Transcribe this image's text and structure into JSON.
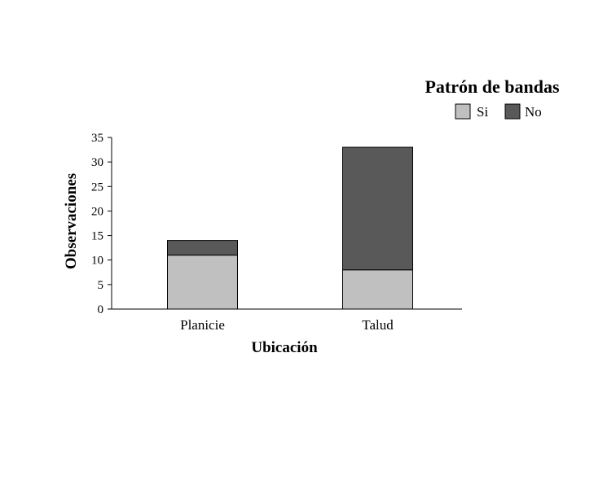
{
  "chart_data": {
    "type": "bar",
    "stacked": true,
    "title": "",
    "xlabel": "Ubicación",
    "ylabel": "Observaciones",
    "categories": [
      "Planicie",
      "Talud"
    ],
    "series": [
      {
        "name": "Si",
        "values": [
          11,
          8
        ],
        "color": "#c0c0c0"
      },
      {
        "name": "No",
        "values": [
          3,
          25
        ],
        "color": "#595959"
      }
    ],
    "ylim": [
      0,
      35
    ],
    "yticks": [
      "0",
      "5",
      "10",
      "15",
      "20",
      "25",
      "30",
      "35"
    ],
    "grid": false,
    "legend": {
      "title": "Patrón de bandas",
      "placement": "top-right",
      "entries": [
        "Si",
        "No"
      ]
    }
  }
}
